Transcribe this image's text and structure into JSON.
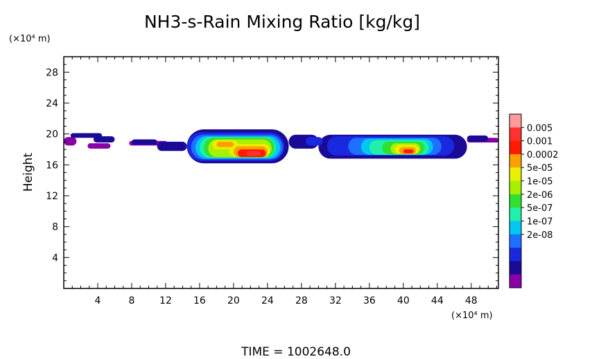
{
  "chart_data": {
    "type": "heatmap",
    "title": "NH3-s-Rain Mixing Ratio [kg/kg]",
    "ylabel": "Height",
    "x_unit": "(×10⁴ m)",
    "y_unit": "(×10⁴ m)",
    "xlim": [
      0,
      51.2
    ],
    "ylim": [
      0,
      30
    ],
    "x_ticks": [
      "4",
      "8",
      "12",
      "16",
      "20",
      "24",
      "28",
      "32",
      "36",
      "40",
      "44",
      "48"
    ],
    "y_ticks": [
      "4",
      "8",
      "12",
      "16",
      "20",
      "24",
      "28"
    ],
    "legend_labels": [
      "0.005",
      "0.001",
      "0.0002",
      "5e-05",
      "1e-05",
      "2e-06",
      "5e-07",
      "1e-07",
      "2e-08"
    ],
    "legend_colors": [
      "#ff9a9a",
      "#ff3030",
      "#ff1a00",
      "#ffa000",
      "#e8f000",
      "#a8f000",
      "#30e030",
      "#20f0a8",
      "#00c8f0",
      "#1e70ff",
      "#1a28e0",
      "#1a0a96",
      "#8a00a8"
    ],
    "levels": [
      {
        "level": 0,
        "color": "#8a00a8",
        "blobs": [
          {
            "x0": 0,
            "x1": 1.5,
            "y0": 18.5,
            "y1": 19.6
          },
          {
            "x0": 2.8,
            "x1": 5.5,
            "y0": 18.1,
            "y1": 18.8
          },
          {
            "x0": 7.7,
            "x1": 12.2,
            "y0": 18.5,
            "y1": 19.1
          },
          {
            "x0": 47.5,
            "x1": 51.2,
            "y0": 18.9,
            "y1": 19.5
          }
        ]
      },
      {
        "level": 1,
        "color": "#1a0a96",
        "blobs": [
          {
            "x0": 0.8,
            "x1": 4.5,
            "y0": 19.5,
            "y1": 20.1
          },
          {
            "x0": 3.5,
            "x1": 6.0,
            "y0": 18.9,
            "y1": 19.7
          },
          {
            "x0": 8.0,
            "x1": 11.0,
            "y0": 18.6,
            "y1": 19.3
          },
          {
            "x0": 11.0,
            "x1": 14.5,
            "y0": 17.8,
            "y1": 19.0
          },
          {
            "x0": 14.5,
            "x1": 26.5,
            "y0": 16.2,
            "y1": 20.6
          },
          {
            "x0": 26.5,
            "x1": 30.0,
            "y0": 18.1,
            "y1": 19.9
          },
          {
            "x0": 30.0,
            "x1": 47.5,
            "y0": 16.8,
            "y1": 19.9
          },
          {
            "x0": 47.5,
            "x1": 50.0,
            "y0": 19.0,
            "y1": 19.8
          }
        ]
      },
      {
        "level": 2,
        "color": "#1a28e0",
        "blobs": [
          {
            "x0": 14.5,
            "x1": 26.0,
            "y0": 16.5,
            "y1": 20.2
          },
          {
            "x0": 28.5,
            "x1": 30.5,
            "y0": 18.5,
            "y1": 19.6
          },
          {
            "x0": 31.0,
            "x1": 46.0,
            "y0": 17.2,
            "y1": 19.7
          }
        ]
      },
      {
        "level": 3,
        "color": "#1e70ff",
        "blobs": [
          {
            "x0": 15.0,
            "x1": 25.8,
            "y0": 16.7,
            "y1": 19.9
          },
          {
            "x0": 33.5,
            "x1": 44.5,
            "y0": 17.3,
            "y1": 19.5
          }
        ]
      },
      {
        "level": 4,
        "color": "#00c8f0",
        "blobs": [
          {
            "x0": 15.5,
            "x1": 25.5,
            "y0": 16.8,
            "y1": 19.7
          },
          {
            "x0": 35.0,
            "x1": 43.5,
            "y0": 17.3,
            "y1": 19.4
          }
        ]
      },
      {
        "level": 5,
        "color": "#20f0a8",
        "blobs": [
          {
            "x0": 16.0,
            "x1": 25.0,
            "y0": 16.9,
            "y1": 19.6
          },
          {
            "x0": 36.0,
            "x1": 43.0,
            "y0": 17.3,
            "y1": 19.2
          }
        ]
      },
      {
        "level": 6,
        "color": "#30e030",
        "blobs": [
          {
            "x0": 16.5,
            "x1": 24.8,
            "y0": 17.0,
            "y1": 19.5
          },
          {
            "x0": 37.5,
            "x1": 42.5,
            "y0": 17.4,
            "y1": 19.0
          }
        ]
      },
      {
        "level": 7,
        "color": "#a8f000",
        "blobs": [
          {
            "x0": 17.0,
            "x1": 24.5,
            "y0": 17.0,
            "y1": 19.3
          },
          {
            "x0": 38.5,
            "x1": 42.0,
            "y0": 17.4,
            "y1": 18.8
          }
        ]
      },
      {
        "level": 8,
        "color": "#e8f000",
        "blobs": [
          {
            "x0": 17.5,
            "x1": 20.5,
            "y0": 18.0,
            "y1": 19.2
          },
          {
            "x0": 19.5,
            "x1": 24.3,
            "y0": 17.0,
            "y1": 18.7
          },
          {
            "x0": 39.0,
            "x1": 41.8,
            "y0": 17.4,
            "y1": 18.6
          }
        ]
      },
      {
        "level": 9,
        "color": "#ffa000",
        "blobs": [
          {
            "x0": 18.0,
            "x1": 20.0,
            "y0": 18.3,
            "y1": 19.0
          },
          {
            "x0": 20.0,
            "x1": 24.0,
            "y0": 17.0,
            "y1": 18.4
          },
          {
            "x0": 39.5,
            "x1": 41.5,
            "y0": 17.4,
            "y1": 18.3
          }
        ]
      },
      {
        "level": 10,
        "color": "#ff1a00",
        "blobs": [
          {
            "x0": 20.5,
            "x1": 23.8,
            "y0": 17.0,
            "y1": 18.0
          },
          {
            "x0": 40.0,
            "x1": 41.2,
            "y0": 17.5,
            "y1": 18.0
          }
        ]
      },
      {
        "level": 11,
        "color": "#ff3030",
        "blobs": [
          {
            "x0": 21.5,
            "x1": 23.2,
            "y0": 17.2,
            "y1": 17.8
          }
        ]
      }
    ],
    "time_label": "TIME  =  1002648.0"
  }
}
